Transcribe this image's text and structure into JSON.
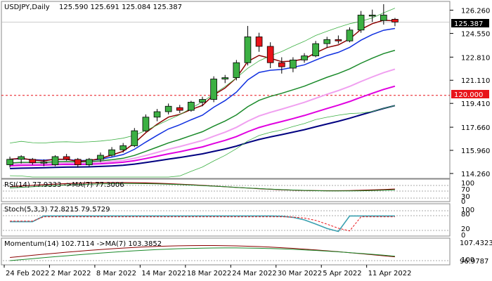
{
  "header": {
    "symbol": "USDJPY,Daily",
    "ohlc": "125.590 125.691 125.084 125.387"
  },
  "panels": {
    "rsi": {
      "label": "RSI(14) 77.9333  ->MA(7) 77.3006",
      "levels": [
        "100",
        "70",
        "30",
        "0"
      ]
    },
    "stoch": {
      "label": "Stoch(5,3,3) 72.8215 79.5729",
      "levels": [
        "100",
        "80",
        "20",
        "0"
      ]
    },
    "momentum": {
      "label": "Momentum(14) 102.7114  ->MA(7) 103.3852",
      "levels": [
        "107.4323",
        "100",
        "96.9787"
      ]
    }
  },
  "price_tags": {
    "current": "125.387",
    "level": "120.000"
  },
  "colors": {
    "bull": "#3cb043",
    "bear": "#e8141a",
    "tag_current": "#000000",
    "tag_level": "#e8141a"
  },
  "chart_data": {
    "type": "candlestick",
    "title": "USDJPY,Daily",
    "price_axis_ticks": [
      "126.260",
      "124.550",
      "122.810",
      "121.110",
      "119.410",
      "117.660",
      "115.960",
      "114.260"
    ],
    "price_axis_values": [
      126.26,
      124.55,
      122.81,
      121.11,
      119.41,
      117.66,
      115.96,
      114.26
    ],
    "price_range": [
      114.0,
      126.8
    ],
    "x_ticks": [
      "24 Feb 2022",
      "2 Mar 2022",
      "8 Mar 2022",
      "14 Mar 2022",
      "18 Mar 2022",
      "24 Mar 2022",
      "30 Mar 2022",
      "5 Apr 2022",
      "11 Apr 2022"
    ],
    "x_tick_index": [
      0,
      4,
      8,
      12,
      16,
      20,
      24,
      28,
      32
    ],
    "horizontal_level": 120.0,
    "candles": [
      {
        "o": 114.9,
        "h": 115.5,
        "l": 114.7,
        "c": 115.3
      },
      {
        "o": 115.3,
        "h": 115.6,
        "l": 115.0,
        "c": 115.5
      },
      {
        "o": 115.3,
        "h": 115.4,
        "l": 114.9,
        "c": 115.05
      },
      {
        "o": 115.05,
        "h": 115.3,
        "l": 114.8,
        "c": 115.1
      },
      {
        "o": 114.9,
        "h": 115.6,
        "l": 114.8,
        "c": 115.5
      },
      {
        "o": 115.5,
        "h": 115.7,
        "l": 115.2,
        "c": 115.3
      },
      {
        "o": 115.3,
        "h": 115.4,
        "l": 114.7,
        "c": 114.9
      },
      {
        "o": 114.9,
        "h": 115.4,
        "l": 114.8,
        "c": 115.3
      },
      {
        "o": 115.3,
        "h": 115.8,
        "l": 115.1,
        "c": 115.6
      },
      {
        "o": 115.6,
        "h": 116.2,
        "l": 115.5,
        "c": 116.0
      },
      {
        "o": 116.0,
        "h": 116.5,
        "l": 115.8,
        "c": 116.3
      },
      {
        "o": 116.3,
        "h": 117.6,
        "l": 116.2,
        "c": 117.4
      },
      {
        "o": 117.4,
        "h": 118.6,
        "l": 117.3,
        "c": 118.4
      },
      {
        "o": 118.4,
        "h": 119.0,
        "l": 118.1,
        "c": 118.8
      },
      {
        "o": 118.8,
        "h": 119.4,
        "l": 118.6,
        "c": 119.2
      },
      {
        "o": 119.1,
        "h": 119.3,
        "l": 118.7,
        "c": 118.9
      },
      {
        "o": 118.9,
        "h": 119.6,
        "l": 118.8,
        "c": 119.5
      },
      {
        "o": 119.5,
        "h": 119.9,
        "l": 119.2,
        "c": 119.7
      },
      {
        "o": 119.7,
        "h": 121.4,
        "l": 119.5,
        "c": 121.2
      },
      {
        "o": 121.2,
        "h": 121.5,
        "l": 120.9,
        "c": 121.3
      },
      {
        "o": 121.3,
        "h": 122.6,
        "l": 121.1,
        "c": 122.4
      },
      {
        "o": 122.4,
        "h": 125.1,
        "l": 122.2,
        "c": 124.3
      },
      {
        "o": 124.3,
        "h": 124.6,
        "l": 123.2,
        "c": 123.6
      },
      {
        "o": 123.6,
        "h": 123.9,
        "l": 122.0,
        "c": 122.4
      },
      {
        "o": 122.4,
        "h": 122.8,
        "l": 121.6,
        "c": 122.1
      },
      {
        "o": 122.0,
        "h": 122.8,
        "l": 121.7,
        "c": 122.6
      },
      {
        "o": 122.6,
        "h": 123.1,
        "l": 122.4,
        "c": 122.9
      },
      {
        "o": 122.9,
        "h": 124.0,
        "l": 122.8,
        "c": 123.8
      },
      {
        "o": 123.8,
        "h": 124.3,
        "l": 123.5,
        "c": 124.1
      },
      {
        "o": 124.1,
        "h": 124.4,
        "l": 123.8,
        "c": 124.0
      },
      {
        "o": 124.0,
        "h": 125.0,
        "l": 123.9,
        "c": 124.8
      },
      {
        "o": 124.8,
        "h": 126.2,
        "l": 124.6,
        "c": 125.9
      },
      {
        "o": 125.9,
        "h": 126.3,
        "l": 125.4,
        "c": 125.9
      },
      {
        "o": 125.5,
        "h": 126.7,
        "l": 125.2,
        "c": 125.9
      },
      {
        "o": 125.59,
        "h": 125.691,
        "l": 125.084,
        "c": 125.387
      }
    ]
  }
}
